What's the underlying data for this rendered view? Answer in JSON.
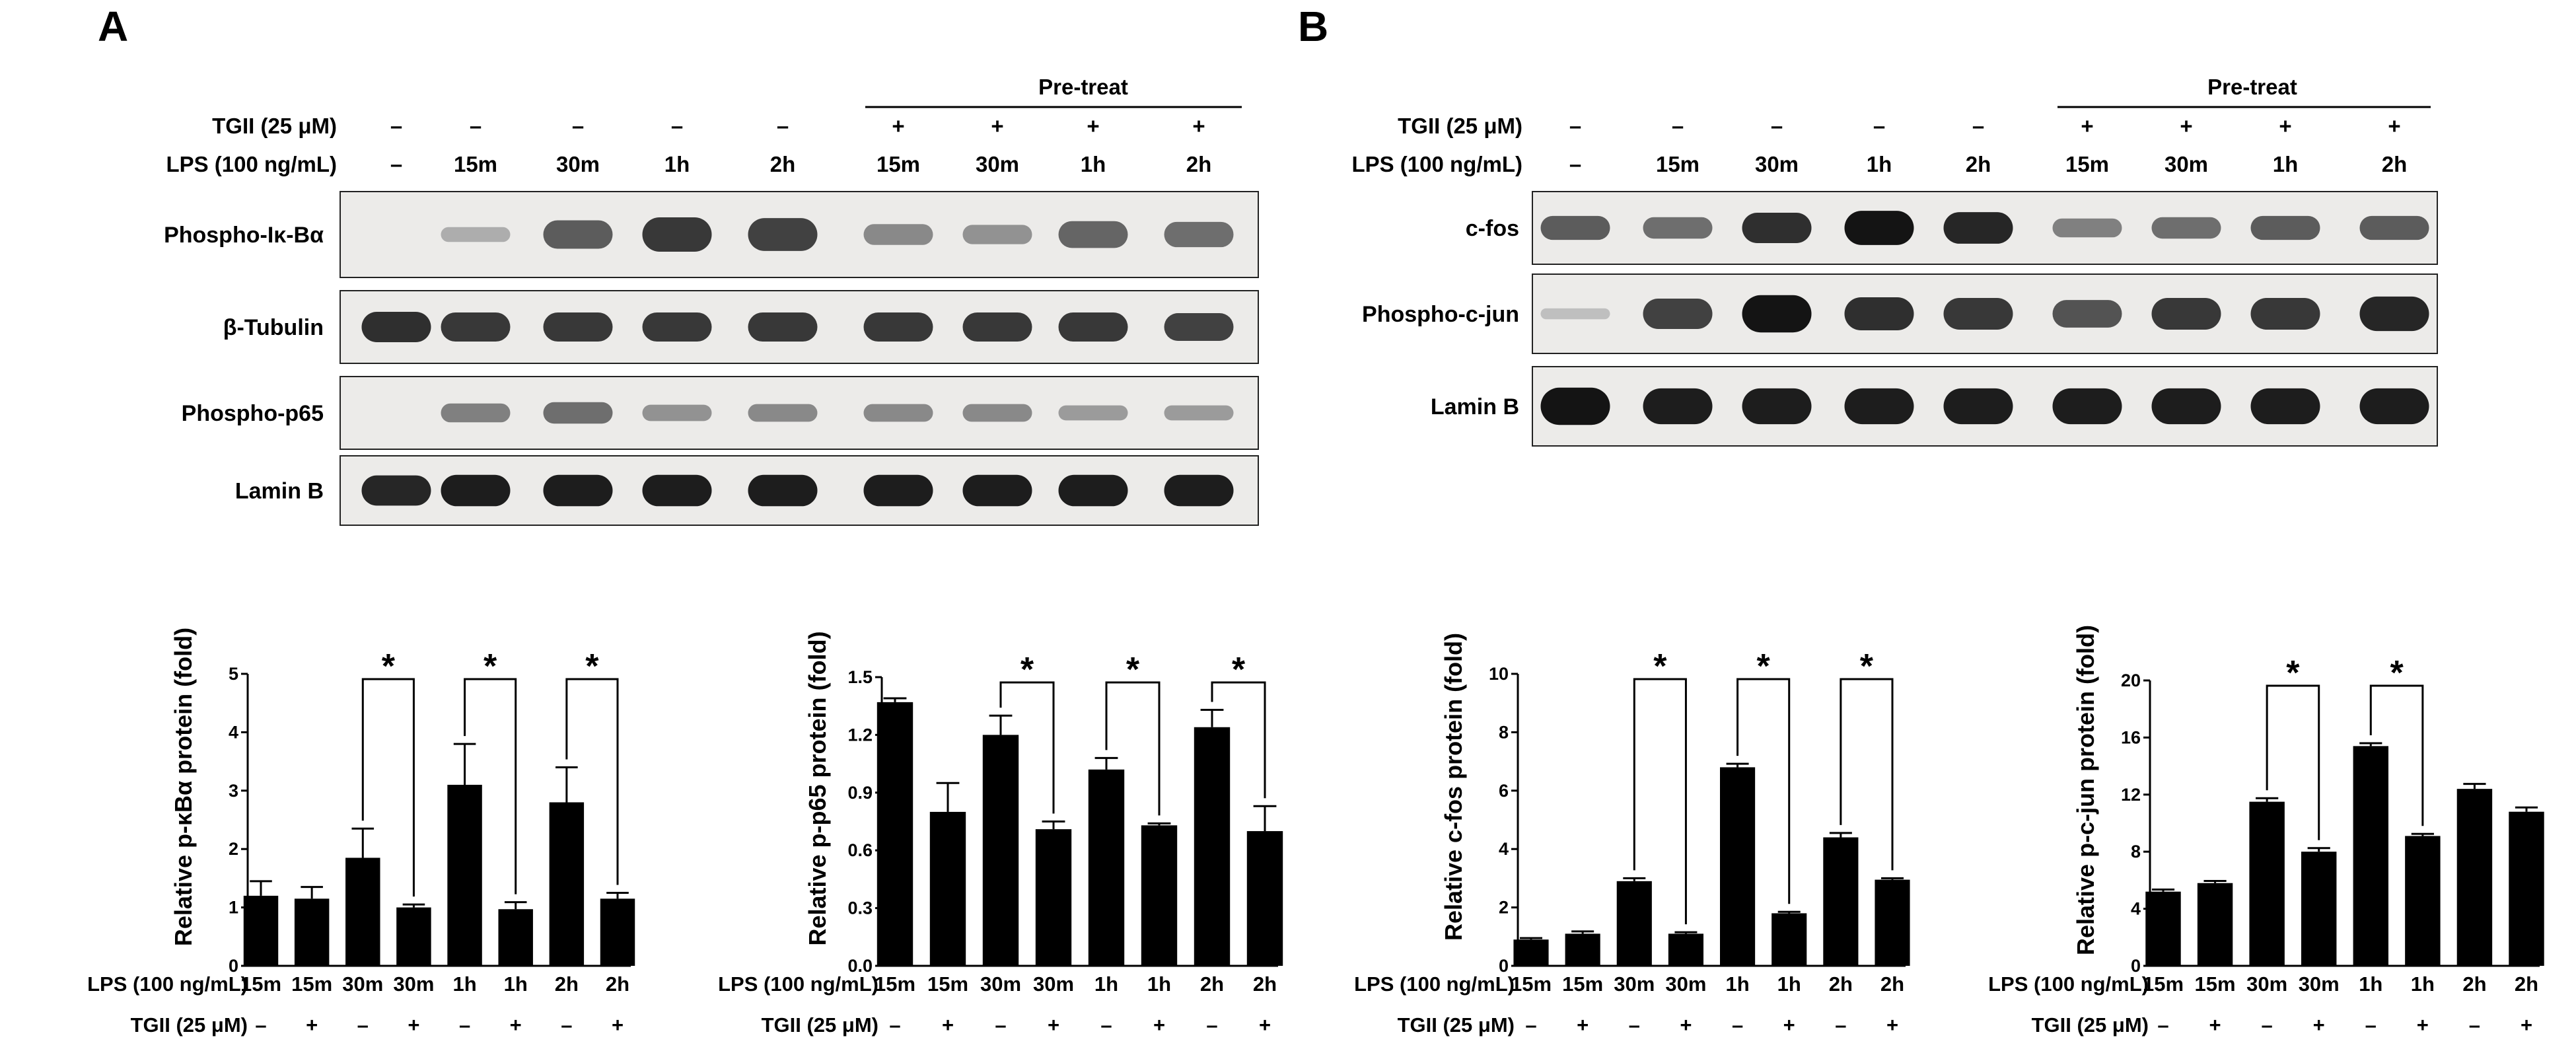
{
  "panels": {
    "A": {
      "letter": "A",
      "pretreat": "Pre-treat",
      "tgii_label": "TGII (25 μM)",
      "lps_label": "LPS (100  ng/mL)",
      "tgii_values": [
        "–",
        "–",
        "–",
        "–",
        "–",
        "+",
        "+",
        "+",
        "+"
      ],
      "lps_values": [
        "–",
        "15m",
        "30m",
        "1h",
        "2h",
        "15m",
        "30m",
        "1h",
        "2h"
      ],
      "blots": [
        {
          "label": "Phospho-Iκ-Bα",
          "intensity": [
            0,
            0.15,
            0.6,
            0.8,
            0.75,
            0.35,
            0.3,
            0.55,
            0.5
          ]
        },
        {
          "label": "β-Tubulin",
          "intensity": [
            0.85,
            0.8,
            0.8,
            0.8,
            0.8,
            0.8,
            0.8,
            0.8,
            0.75
          ]
        },
        {
          "label": "Phospho-p65",
          "intensity": [
            0,
            0.4,
            0.5,
            0.3,
            0.35,
            0.35,
            0.35,
            0.25,
            0.25
          ]
        },
        {
          "label": "Lamin B",
          "intensity": [
            0.9,
            0.95,
            0.95,
            0.95,
            0.95,
            0.95,
            0.95,
            0.95,
            0.95
          ]
        }
      ]
    },
    "B": {
      "letter": "B",
      "pretreat": "Pre-treat",
      "tgii_label": "TGII (25  μM)",
      "lps_label": "LPS (100  ng/mL)",
      "tgii_values": [
        "–",
        "–",
        "–",
        "–",
        "–",
        "+",
        "+",
        "+",
        "+"
      ],
      "lps_values": [
        "–",
        "15m",
        "30m",
        "1h",
        "2h",
        "15m",
        "30m",
        "1h",
        "2h"
      ],
      "blots": [
        {
          "label": "c-fos",
          "intensity": [
            0.6,
            0.5,
            0.85,
            1.0,
            0.9,
            0.4,
            0.5,
            0.6,
            0.6
          ]
        },
        {
          "label": "Phospho-c-jun",
          "intensity": [
            0.05,
            0.75,
            1.0,
            0.85,
            0.8,
            0.65,
            0.8,
            0.8,
            0.9
          ]
        },
        {
          "label": "Lamin B",
          "intensity": [
            1.0,
            0.95,
            0.95,
            0.95,
            0.95,
            0.95,
            0.95,
            0.95,
            0.95
          ]
        }
      ]
    }
  },
  "bar_x": {
    "lps_label": "LPS (100  ng/mL)",
    "tgii_label": "TGII (25  μM)",
    "lps": [
      "15m",
      "15m",
      "30m",
      "30m",
      "1h",
      "1h",
      "2h",
      "2h"
    ],
    "tgii": [
      "–",
      "+",
      "–",
      "+",
      "–",
      "+",
      "–",
      "+"
    ]
  },
  "chart_data": [
    {
      "type": "bar",
      "ylabel": "Relative p-κBα protein (fold)",
      "ylim": [
        0,
        5
      ],
      "yticks": [
        "0",
        "1",
        "2",
        "3",
        "4",
        "5"
      ],
      "values": [
        1.2,
        1.15,
        1.85,
        1.0,
        3.1,
        0.97,
        2.8,
        1.15
      ],
      "errors": [
        0.25,
        0.2,
        0.5,
        0.05,
        0.7,
        0.12,
        0.6,
        0.1
      ],
      "significance": [
        {
          "pair": [
            2,
            3
          ],
          "label": "*"
        },
        {
          "pair": [
            4,
            5
          ],
          "label": "*"
        },
        {
          "pair": [
            6,
            7
          ],
          "label": "*"
        }
      ]
    },
    {
      "type": "bar",
      "ylabel": "Relative p-p65 protein (fold)",
      "ylim": [
        0,
        1.5
      ],
      "yticks": [
        "0.0",
        "0.3",
        "0.6",
        "0.9",
        "1.2",
        "1.5"
      ],
      "values": [
        1.37,
        0.8,
        1.2,
        0.71,
        1.02,
        0.73,
        1.24,
        0.7
      ],
      "errors": [
        0.02,
        0.15,
        0.1,
        0.04,
        0.06,
        0.01,
        0.09,
        0.13
      ],
      "significance": [
        {
          "pair": [
            2,
            3
          ],
          "label": "*"
        },
        {
          "pair": [
            4,
            5
          ],
          "label": "*"
        },
        {
          "pair": [
            6,
            7
          ],
          "label": "*"
        }
      ]
    },
    {
      "type": "bar",
      "ylabel": "Relative c-fos protein (fold)",
      "ylim": [
        0,
        10
      ],
      "yticks": [
        "0",
        "2",
        "4",
        "6",
        "8",
        "10"
      ],
      "values": [
        0.9,
        1.1,
        2.9,
        1.1,
        6.8,
        1.8,
        4.4,
        2.95
      ],
      "errors": [
        0.05,
        0.08,
        0.1,
        0.05,
        0.12,
        0.05,
        0.15,
        0.05
      ],
      "significance": [
        {
          "pair": [
            2,
            3
          ],
          "label": "*"
        },
        {
          "pair": [
            4,
            5
          ],
          "label": "*"
        },
        {
          "pair": [
            6,
            7
          ],
          "label": "*"
        }
      ]
    },
    {
      "type": "bar",
      "ylabel": "Relative p-c-jun protein (fold)",
      "ylim": [
        0,
        20
      ],
      "yticks": [
        "0",
        "4",
        "8",
        "12",
        "16",
        "20"
      ],
      "values": [
        5.2,
        5.8,
        11.5,
        8.0,
        15.4,
        9.1,
        12.4,
        10.8
      ],
      "errors": [
        0.15,
        0.15,
        0.25,
        0.25,
        0.2,
        0.15,
        0.35,
        0.3
      ],
      "significance": [
        {
          "pair": [
            2,
            3
          ],
          "label": "*"
        },
        {
          "pair": [
            4,
            5
          ],
          "label": "*"
        }
      ]
    }
  ]
}
